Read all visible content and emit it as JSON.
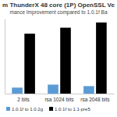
{
  "chart_data": {
    "type": "bar",
    "title": "m ThunderX 48 core (1P) OpenSSL Ve",
    "subtitle": "mance Improvement compared to 1.0.1f Ba",
    "categories": [
      "2 bits",
      "rsa 1024 bits",
      "rsa 2048 bits"
    ],
    "series": [
      {
        "name": "1.0.1f to 1.0.2g",
        "color": "#5b9bd5",
        "values": [
          0.8,
          1.2,
          1.0
        ]
      },
      {
        "name": "1.0.1f to 1.1-pre5",
        "color": "#000000",
        "values": [
          8.0,
          8.8,
          9.5
        ]
      }
    ],
    "ylim": [
      0,
      10
    ],
    "tick_labels": "x",
    "grid": false,
    "legend": "bottom"
  }
}
